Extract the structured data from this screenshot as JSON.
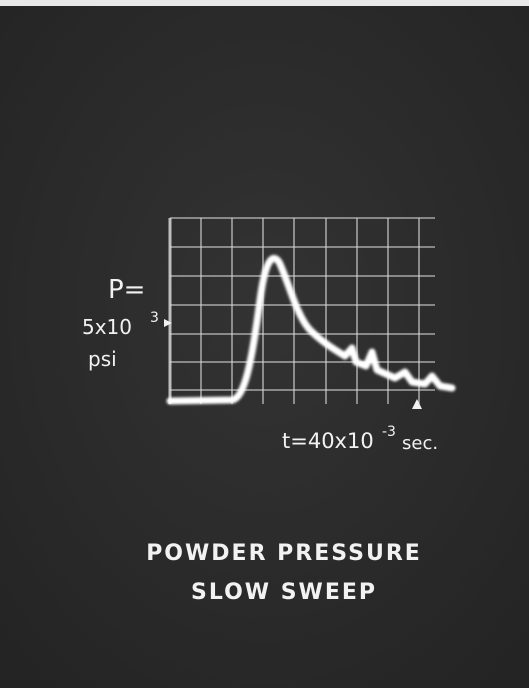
{
  "trace_labels": {
    "pressure_symbol": "P=",
    "pressure_scale": "5x10",
    "pressure_exponent": "3",
    "pressure_unit": "psi",
    "time_scale": "t=40x10",
    "time_exponent": "-3",
    "time_unit": "sec."
  },
  "caption": {
    "line1": "POWDER PRESSURE",
    "line2": "SLOW SWEEP"
  }
}
